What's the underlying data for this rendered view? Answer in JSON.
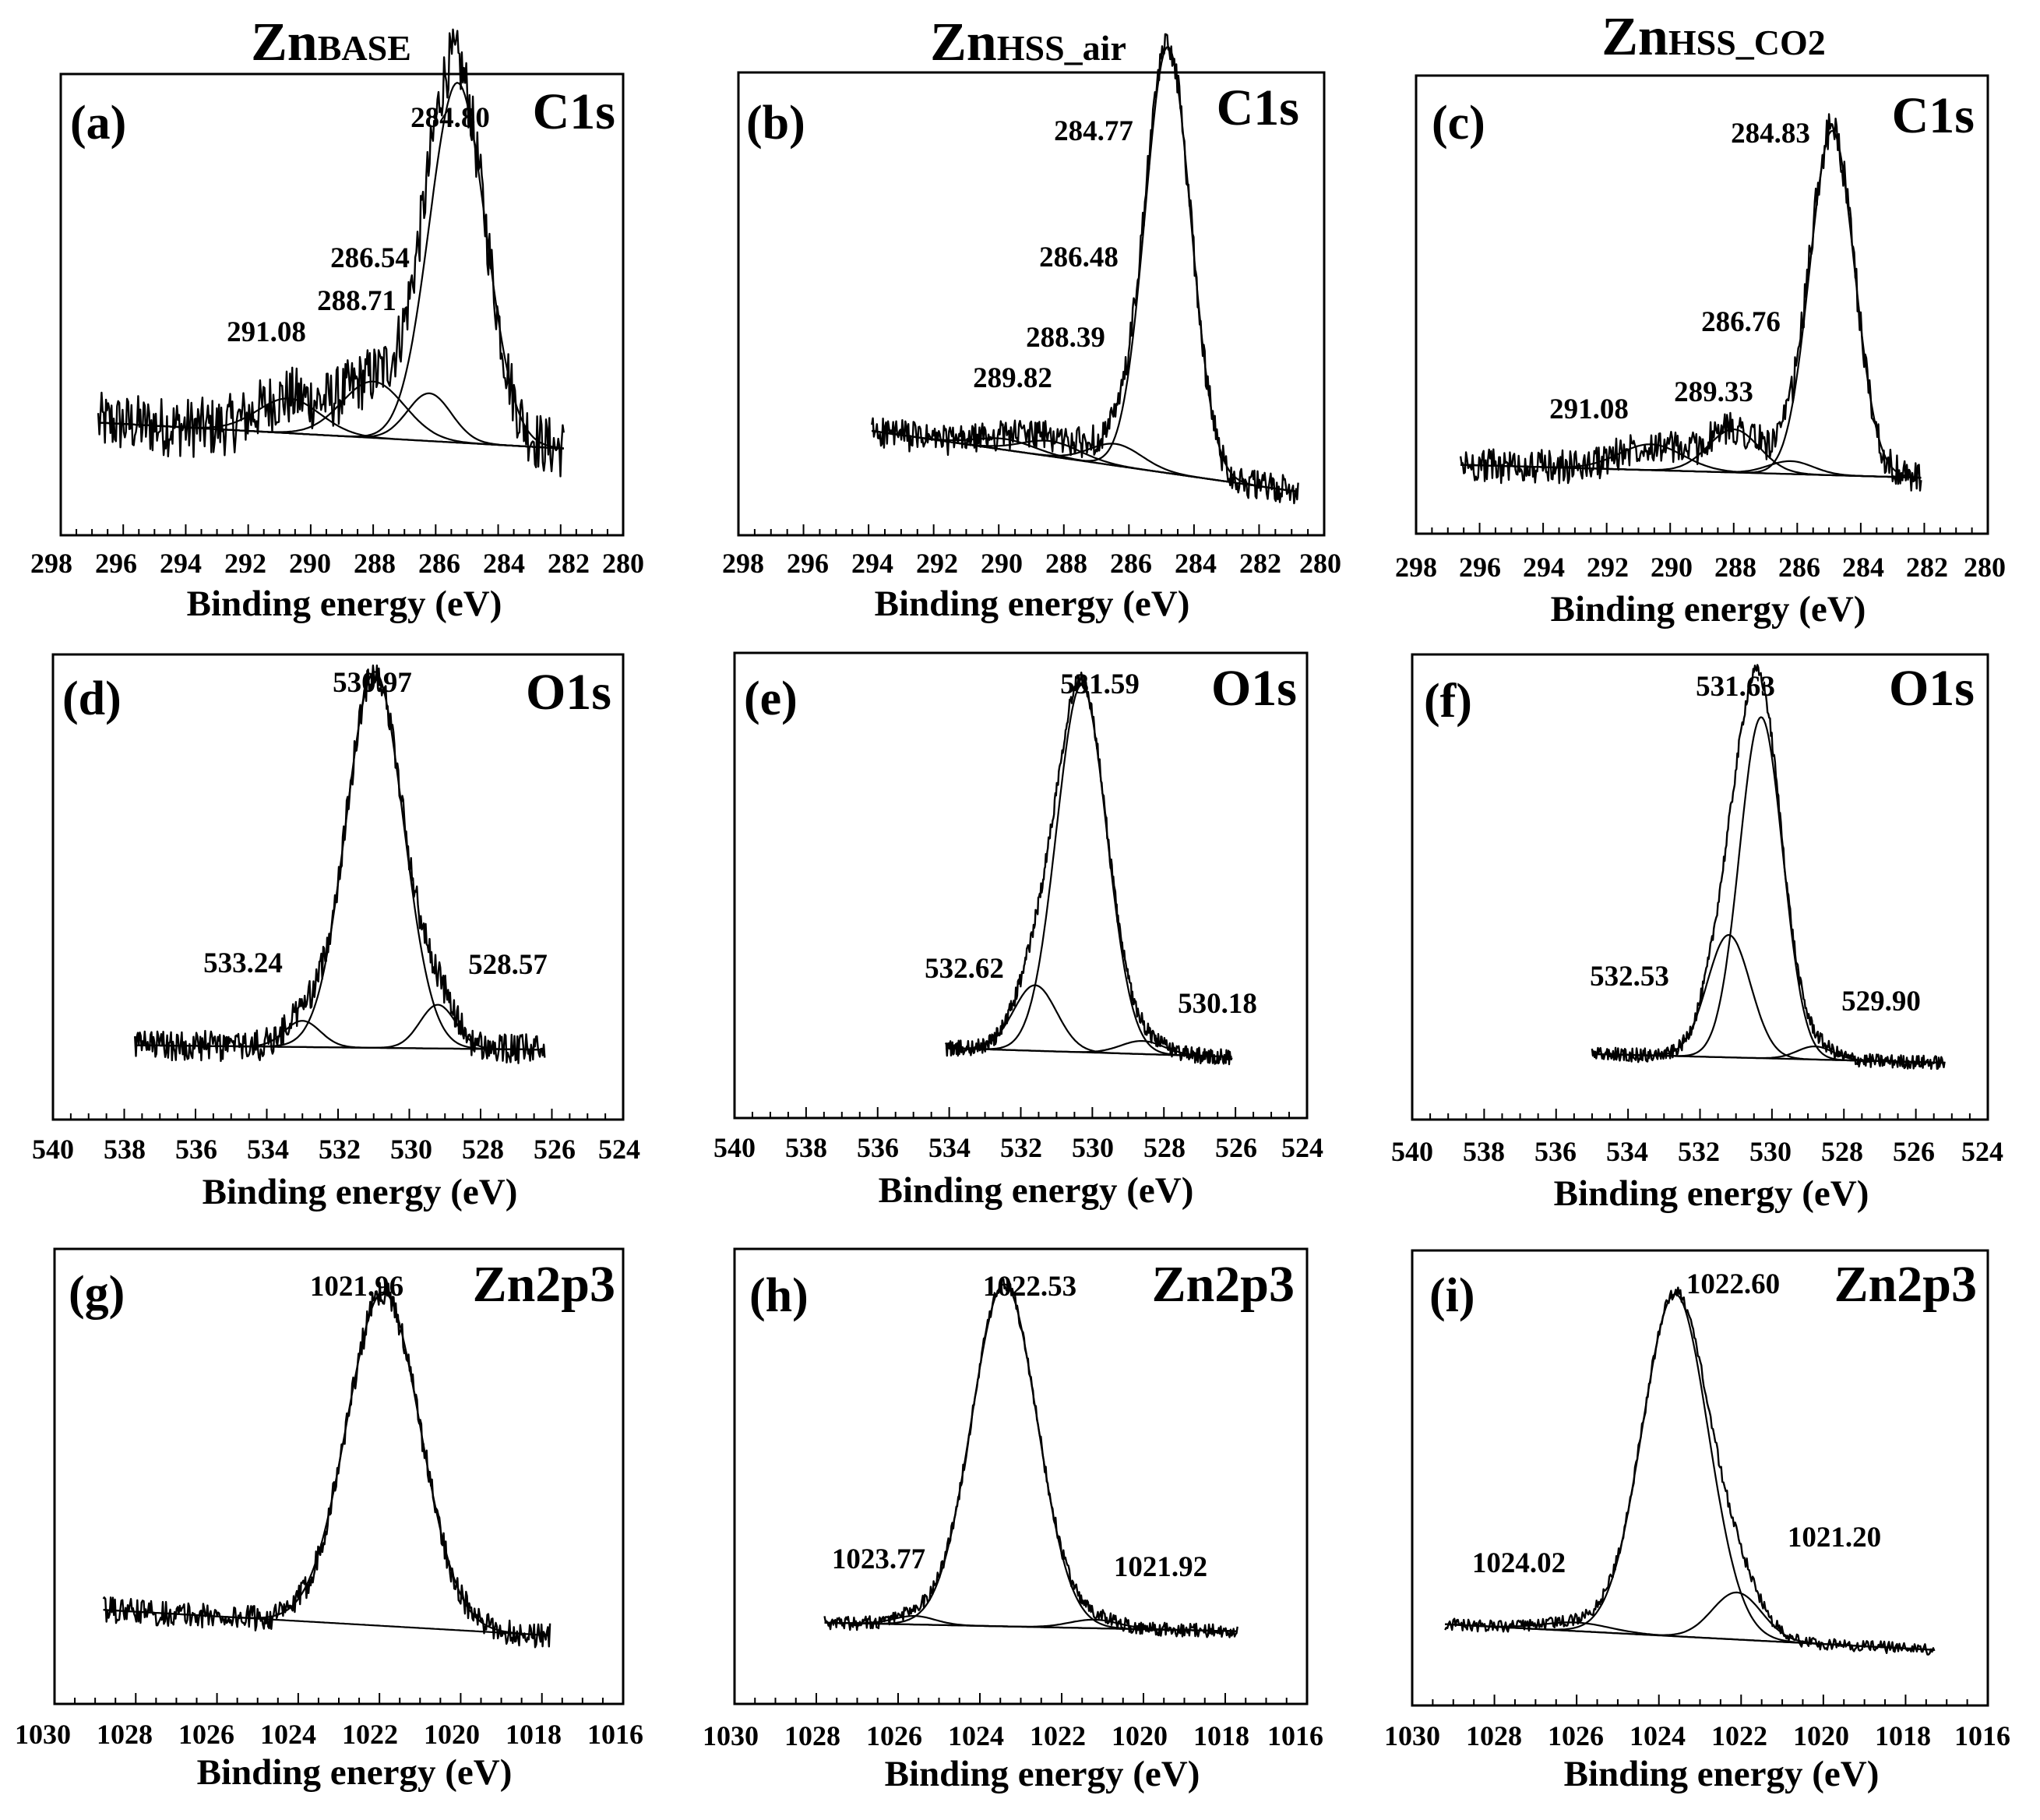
{
  "column_titles": [
    {
      "main": "Zn",
      "sub": "BASE"
    },
    {
      "main": "Zn",
      "sub": "HSS_air"
    },
    {
      "main": "Zn",
      "sub": "HSS_CO2"
    }
  ],
  "chart_data": [
    {
      "panel": "(a)",
      "peak": "C1s",
      "type": "line",
      "xlabel": "Binding energy (eV)",
      "xlim": [
        298,
        280
      ],
      "ticks": [
        "298",
        "296",
        "294",
        "292",
        "290",
        "288",
        "286",
        "284",
        "282",
        "280"
      ],
      "data_range": [
        296.8,
        281.9
      ],
      "baseline": [
        0.26,
        0.2
      ],
      "noise": 0.07,
      "components": [
        {
          "center": 285.3,
          "height": 0.83,
          "width": 0.9,
          "label": "284.80"
        },
        {
          "center": 286.2,
          "height": 0.11,
          "width": 0.7,
          "label": "286.54"
        },
        {
          "center": 288.0,
          "height": 0.13,
          "width": 1.0,
          "label": "288.71"
        },
        {
          "center": 290.7,
          "height": 0.08,
          "width": 1.0,
          "label": "291.08"
        }
      ]
    },
    {
      "panel": "(b)",
      "peak": "C1s",
      "type": "line",
      "xlabel": "Binding energy (eV)",
      "xlim": [
        298,
        280
      ],
      "ticks": [
        "298",
        "296",
        "294",
        "292",
        "290",
        "288",
        "286",
        "284",
        "282",
        "280"
      ],
      "data_range": [
        293.9,
        280.8
      ],
      "baseline": [
        0.24,
        0.1
      ],
      "noise": 0.035,
      "components": [
        {
          "center": 284.8,
          "height": 0.98,
          "width": 0.7,
          "label": "284.77"
        },
        {
          "center": 286.4,
          "height": 0.05,
          "width": 0.8,
          "label": "286.48"
        },
        {
          "center": 288.4,
          "height": 0.035,
          "width": 0.9,
          "label": "288.39"
        },
        {
          "center": 289.8,
          "height": 0.025,
          "width": 0.9,
          "label": "289.82"
        }
      ]
    },
    {
      "panel": "(c)",
      "peak": "C1s",
      "type": "line",
      "xlabel": "Binding energy (eV)",
      "xlim": [
        298,
        280
      ],
      "ticks": [
        "298",
        "296",
        "294",
        "292",
        "290",
        "288",
        "286",
        "284",
        "282",
        "280"
      ],
      "data_range": [
        296.6,
        282.1
      ],
      "baseline": [
        0.16,
        0.13
      ],
      "noise": 0.04,
      "components": [
        {
          "center": 284.9,
          "height": 0.8,
          "width": 0.7,
          "label": "284.83"
        },
        {
          "center": 286.2,
          "height": 0.03,
          "width": 0.7,
          "label": "286.76"
        },
        {
          "center": 288.0,
          "height": 0.1,
          "width": 0.8,
          "label": "289.33"
        },
        {
          "center": 290.6,
          "height": 0.06,
          "width": 1.0,
          "label": "291.08"
        }
      ]
    },
    {
      "panel": "(d)",
      "peak": "O1s",
      "type": "line",
      "xlabel": "Binding energy (eV)",
      "xlim": [
        540,
        524
      ],
      "ticks": [
        "540",
        "538",
        "536",
        "534",
        "532",
        "530",
        "528",
        "526",
        "524"
      ],
      "data_range": [
        537.7,
        526.2
      ],
      "baseline": [
        0.17,
        0.16
      ],
      "noise": 0.035,
      "components": [
        {
          "center": 530.97,
          "height": 0.86,
          "width": 0.8,
          "label": "530.97"
        },
        {
          "center": 533.0,
          "height": 0.06,
          "width": 0.5,
          "label": "533.24"
        },
        {
          "center": 529.2,
          "height": 0.1,
          "width": 0.5,
          "label": "528.57"
        }
      ]
    },
    {
      "panel": "(e)",
      "peak": "O1s",
      "type": "line",
      "xlabel": "Binding energy (eV)",
      "xlim": [
        540,
        524
      ],
      "ticks": [
        "540",
        "538",
        "536",
        "534",
        "532",
        "530",
        "528",
        "526",
        "524"
      ],
      "data_range": [
        534.1,
        526.1
      ],
      "baseline": [
        0.16,
        0.14
      ],
      "noise": 0.018,
      "components": [
        {
          "center": 530.3,
          "height": 0.84,
          "width": 0.7,
          "label": "531.59"
        },
        {
          "center": 531.6,
          "height": 0.15,
          "width": 0.6,
          "label": "532.62"
        },
        {
          "center": 528.6,
          "height": 0.03,
          "width": 0.6,
          "label": "530.18"
        }
      ]
    },
    {
      "panel": "(f)",
      "peak": "O1s",
      "type": "line",
      "xlabel": "Binding energy (eV)",
      "xlim": [
        540,
        524
      ],
      "ticks": [
        "540",
        "538",
        "536",
        "534",
        "532",
        "530",
        "528",
        "526",
        "524"
      ],
      "data_range": [
        535.0,
        525.2
      ],
      "baseline": [
        0.15,
        0.13
      ],
      "noise": 0.016,
      "components": [
        {
          "center": 530.3,
          "height": 0.78,
          "width": 0.6,
          "label": "531.63"
        },
        {
          "center": 531.2,
          "height": 0.28,
          "width": 0.6,
          "label": "532.53"
        },
        {
          "center": 528.8,
          "height": 0.03,
          "width": 0.5,
          "label": "529.90"
        }
      ]
    },
    {
      "panel": "(g)",
      "peak": "Zn2p3",
      "type": "line",
      "xlabel": "Binding energy (eV)",
      "xlim": [
        1030,
        1016
      ],
      "ticks": [
        "1030",
        "1028",
        "1026",
        "1024",
        "1022",
        "1020",
        "1018",
        "1016"
      ],
      "data_range": [
        1028.8,
        1017.8
      ],
      "baseline": [
        0.22,
        0.16
      ],
      "noise": 0.03,
      "components": [
        {
          "center": 1021.9,
          "height": 0.78,
          "width": 0.9,
          "label": "1021.96"
        }
      ]
    },
    {
      "panel": "(h)",
      "peak": "Zn2p3",
      "type": "line",
      "xlabel": "Binding energy (eV)",
      "xlim": [
        1030,
        1016
      ],
      "ticks": [
        "1030",
        "1028",
        "1026",
        "1024",
        "1022",
        "1020",
        "1018",
        "1016"
      ],
      "data_range": [
        1027.8,
        1017.7
      ],
      "baseline": [
        0.19,
        0.17
      ],
      "noise": 0.016,
      "components": [
        {
          "center": 1023.4,
          "height": 0.8,
          "width": 0.8,
          "label": "1022.53"
        },
        {
          "center": 1025.6,
          "height": 0.02,
          "width": 0.5,
          "label": "1023.77"
        },
        {
          "center": 1021.2,
          "height": 0.02,
          "width": 0.6,
          "label": "1021.92"
        }
      ]
    },
    {
      "panel": "(i)",
      "peak": "Zn2p3",
      "type": "line",
      "xlabel": "Binding energy (eV)",
      "xlim": [
        1030,
        1016
      ],
      "ticks": [
        "1030",
        "1028",
        "1026",
        "1024",
        "1022",
        "1020",
        "1018",
        "1016"
      ],
      "data_range": [
        1029.2,
        1017.3
      ],
      "baseline": [
        0.19,
        0.13
      ],
      "noise": 0.014,
      "components": [
        {
          "center": 1023.6,
          "height": 0.8,
          "width": 0.8,
          "label": "1022.60"
        },
        {
          "center": 1026.0,
          "height": 0.02,
          "width": 0.8,
          "label": "1024.02"
        },
        {
          "center": 1022.1,
          "height": 0.11,
          "width": 0.6,
          "label": "1021.20"
        }
      ]
    }
  ]
}
